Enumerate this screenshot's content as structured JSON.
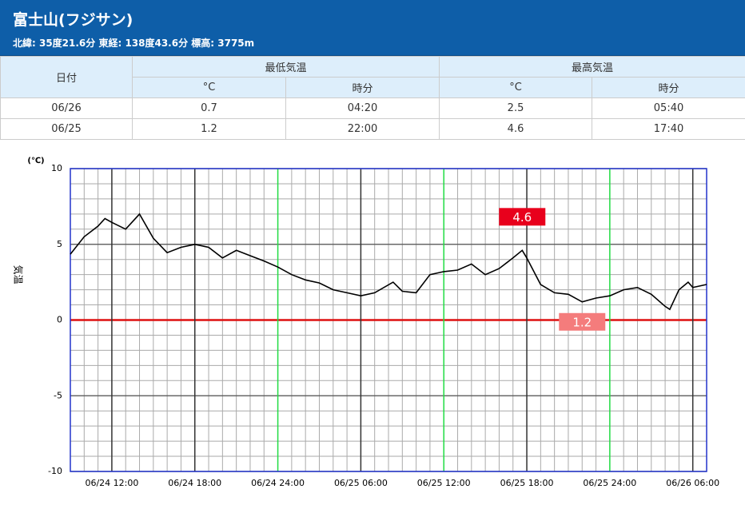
{
  "header": {
    "title": "富士山(フジサン)",
    "subtitle": "北緯: 35度21.6分 東経: 138度43.6分 標高: 3775m"
  },
  "table": {
    "header": [
      "日付",
      "最低気温",
      "最高気温"
    ],
    "subheader": [
      "°C",
      "時分",
      "°C",
      "時分"
    ],
    "rows": [
      [
        "06/26",
        0.7,
        "04:20",
        2.5,
        "05:40"
      ],
      [
        "06/25",
        1.2,
        "22:00",
        4.6,
        "17:40"
      ]
    ]
  },
  "chart_data": {
    "type": "line",
    "y_unit": "(℃)",
    "y_label": "気温",
    "color": "#000000",
    "x": [
      "06/24 09:00",
      "06/24 10:00",
      "06/24 11:00",
      "06/24 11:30",
      "06/24 12:00",
      "06/24 13:00",
      "06/24 14:00",
      "06/24 15:00",
      "06/24 16:00",
      "06/24 17:00",
      "06/24 18:00",
      "06/24 19:00",
      "06/24 20:00",
      "06/24 21:00",
      "06/24 22:00",
      "06/24 23:00",
      "06/25 00:00",
      "06/25 01:00",
      "06/25 02:00",
      "06/25 03:00",
      "06/25 04:00",
      "06/25 05:00",
      "06/25 06:00",
      "06/25 07:00",
      "06/25 08:20",
      "06/25 09:00",
      "06/25 10:00",
      "06/25 11:00",
      "06/25 12:00",
      "06/25 13:00",
      "06/25 14:00",
      "06/25 15:00",
      "06/25 16:00",
      "06/25 17:00",
      "06/25 17:40",
      "06/25 18:00",
      "06/25 19:00",
      "06/25 20:00",
      "06/25 21:00",
      "06/25 22:00",
      "06/25 23:00",
      "06/26 00:00",
      "06/26 01:00",
      "06/26 02:00",
      "06/26 03:00",
      "06/26 04:00",
      "06/26 04:20",
      "06/26 05:00",
      "06/26 05:40",
      "06/26 06:00",
      "06/26 07:00"
    ],
    "values": [
      4.35,
      5.5,
      6.2,
      6.7,
      6.45,
      6.0,
      7.0,
      5.4,
      4.45,
      4.8,
      5.0,
      4.8,
      4.1,
      4.6,
      4.25,
      3.9,
      3.5,
      3.0,
      2.65,
      2.45,
      2.0,
      1.8,
      1.6,
      1.8,
      2.5,
      1.9,
      1.8,
      3.0,
      3.2,
      3.3,
      3.7,
      3.0,
      3.4,
      4.1,
      4.6,
      4.1,
      2.35,
      1.8,
      1.7,
      1.2,
      1.45,
      1.6,
      2.0,
      2.15,
      1.7,
      0.9,
      0.7,
      2.0,
      2.5,
      2.15,
      2.35
    ],
    "xlim": [
      "06/24 09:00",
      "06/26 07:00"
    ],
    "xticks": [
      "06/24 12:00",
      "06/24 18:00",
      "06/24 24:00",
      "06/25 06:00",
      "06/25 12:00",
      "06/25 18:00",
      "06/25 24:00",
      "06/26 06:00"
    ],
    "xtick_colors": [
      "#333333",
      "#333333",
      "#22dd44",
      "#333333",
      "#22dd44",
      "#333333",
      "#22dd44",
      "#333333"
    ],
    "ylim": [
      -10,
      10
    ],
    "yticks": [
      -10,
      -5,
      0,
      5,
      10
    ],
    "zero_line_color": "#dd1111",
    "minor_grid": {
      "x": 1,
      "y": 1
    },
    "grid": true,
    "annotations": [
      {
        "text": "4.6",
        "x": "06/25 17:40",
        "value": 4.6,
        "color": "#e8001c"
      },
      {
        "text": "1.2",
        "x": "06/25 22:00",
        "value": 1.2,
        "color": "#f47c7c"
      }
    ]
  }
}
